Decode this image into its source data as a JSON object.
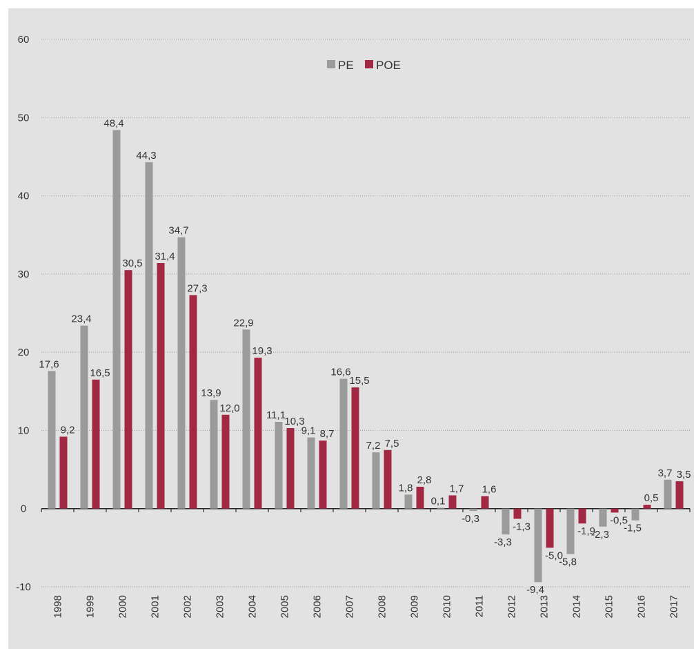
{
  "chart_data": {
    "type": "bar",
    "title": "",
    "xlabel": "",
    "ylabel": "",
    "categories": [
      "1998",
      "1999",
      "2000",
      "2001",
      "2002",
      "2003",
      "2004",
      "2005",
      "2006",
      "2007",
      "2008",
      "2009",
      "2010",
      "2011",
      "2012",
      "2013",
      "2014",
      "2015",
      "2016",
      "2017"
    ],
    "series": [
      {
        "name": "PE",
        "color": "#9b9b9b",
        "values": [
          17.6,
          23.4,
          48.4,
          44.3,
          34.7,
          13.9,
          22.9,
          11.1,
          9.1,
          16.6,
          7.2,
          1.8,
          0.1,
          -0.3,
          -3.3,
          -9.4,
          -5.8,
          -2.3,
          -1.5,
          3.7
        ],
        "labels": [
          "17,6",
          "23,4",
          "48,4",
          "44,3",
          "34,7",
          "13,9",
          "22,9",
          "11,1",
          "9,1",
          "16,6",
          "7,2",
          "1,8",
          "0,1",
          "-0,3",
          "-3,3",
          "-9,4",
          "-5,8",
          "-2,3",
          "-1,5",
          "3,7"
        ]
      },
      {
        "name": "POE",
        "color": "#a32843",
        "values": [
          9.2,
          16.5,
          30.5,
          31.4,
          27.3,
          12.0,
          19.3,
          10.3,
          8.7,
          15.5,
          7.5,
          2.8,
          1.7,
          1.6,
          -1.3,
          -5.0,
          -1.9,
          -0.5,
          0.5,
          3.5
        ],
        "labels": [
          "9,2",
          "16,5",
          "30,5",
          "31,4",
          "27,3",
          "12,0",
          "19,3",
          "10,3",
          "8,7",
          "15,5",
          "7,5",
          "2,8",
          "1,7",
          "1,6",
          "-1,3",
          "-5,0",
          "-1,9",
          "-0,5",
          "0,5",
          "3,5"
        ]
      }
    ],
    "ylim": [
      -10,
      60
    ],
    "yticks": [
      -10,
      0,
      10,
      20,
      30,
      40,
      50,
      60
    ],
    "ytick_labels": [
      "-10",
      "0",
      "10",
      "20",
      "30",
      "40",
      "50",
      "60"
    ],
    "grid": true,
    "grid_style": "dotted",
    "legend_position": "top-center",
    "background": "#e2e2e2"
  }
}
